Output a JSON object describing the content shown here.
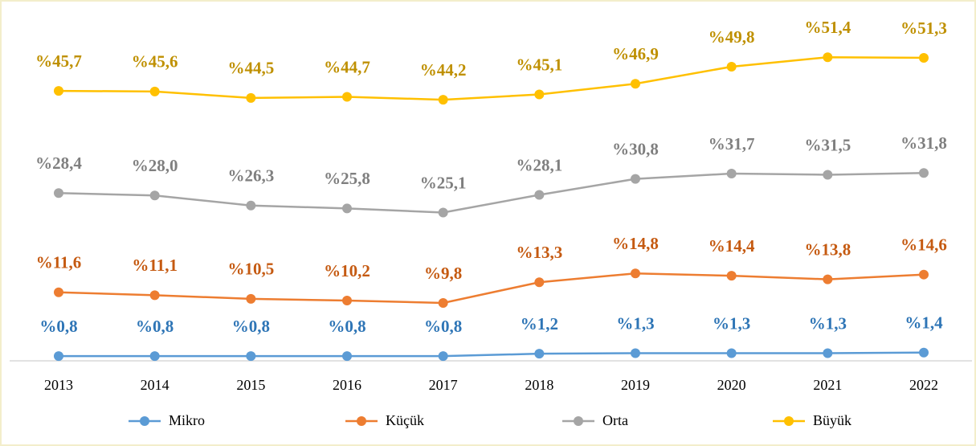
{
  "chart_data": {
    "type": "line",
    "categories": [
      "2013",
      "2014",
      "2015",
      "2016",
      "2017",
      "2018",
      "2019",
      "2020",
      "2021",
      "2022"
    ],
    "ylim": [
      0,
      60
    ],
    "legend": "bottom",
    "series": [
      {
        "name": "Mikro",
        "color": "#5b9bd5",
        "label_color": "#2e75b6",
        "values": [
          0.8,
          0.8,
          0.8,
          0.8,
          0.8,
          1.2,
          1.3,
          1.3,
          1.3,
          1.4
        ],
        "value_labels": [
          "%0,8",
          "%0,8",
          "%0,8",
          "%0,8",
          "%0,8",
          "%1,2",
          "%1,3",
          "%1,3",
          "%1,3",
          "%1,4"
        ]
      },
      {
        "name": "Küçük",
        "color": "#ed7d31",
        "label_color": "#c55a11",
        "values": [
          11.6,
          11.1,
          10.5,
          10.2,
          9.8,
          13.3,
          14.8,
          14.4,
          13.8,
          14.6
        ],
        "value_labels": [
          "%11,6",
          "%11,1",
          "%10,5",
          "%10,2",
          "%9,8",
          "%13,3",
          "%14,8",
          "%14,4",
          "%13,8",
          "%14,6"
        ]
      },
      {
        "name": "Orta",
        "color": "#a5a5a5",
        "label_color": "#7f7f7f",
        "values": [
          28.4,
          28.0,
          26.3,
          25.8,
          25.1,
          28.1,
          30.8,
          31.7,
          31.5,
          31.8
        ],
        "value_labels": [
          "%28,4",
          "%28,0",
          "%26,3",
          "%25,8",
          "%25,1",
          "%28,1",
          "%30,8",
          "%31,7",
          "%31,5",
          "%31,8"
        ]
      },
      {
        "name": "Büyük",
        "color": "#ffc000",
        "label_color": "#bf9000",
        "values": [
          45.7,
          45.6,
          44.5,
          44.7,
          44.2,
          45.1,
          46.9,
          49.8,
          51.4,
          51.3
        ],
        "value_labels": [
          "%45,7",
          "%45,6",
          "%44,5",
          "%44,7",
          "%44,2",
          "%45,1",
          "%46,9",
          "%49,8",
          "%51,4",
          "%51,3"
        ]
      }
    ]
  }
}
